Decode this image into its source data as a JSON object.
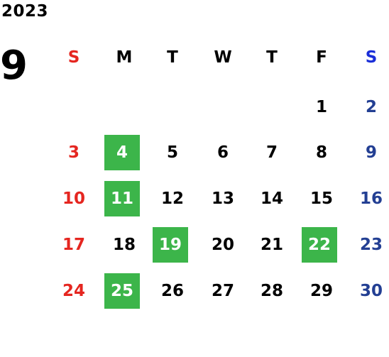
{
  "calendar": {
    "year": "2023",
    "month": "9",
    "weekdays": [
      "S",
      "M",
      "T",
      "W",
      "T",
      "F",
      "S"
    ],
    "weeks": [
      [
        "",
        "",
        "",
        "",
        "",
        "1",
        "2"
      ],
      [
        "3",
        "4",
        "5",
        "6",
        "7",
        "8",
        "9"
      ],
      [
        "10",
        "11",
        "12",
        "13",
        "14",
        "15",
        "16"
      ],
      [
        "17",
        "18",
        "19",
        "20",
        "21",
        "22",
        "23"
      ],
      [
        "24",
        "25",
        "26",
        "27",
        "28",
        "29",
        "30"
      ]
    ],
    "highlighted_days": [
      "4",
      "11",
      "19",
      "22",
      "25"
    ]
  },
  "colors": {
    "sunday": "#e52620",
    "saturday_header": "#1a2ed8",
    "saturday": "#233f93",
    "highlight": "#3cb54a",
    "text": "#000000"
  }
}
